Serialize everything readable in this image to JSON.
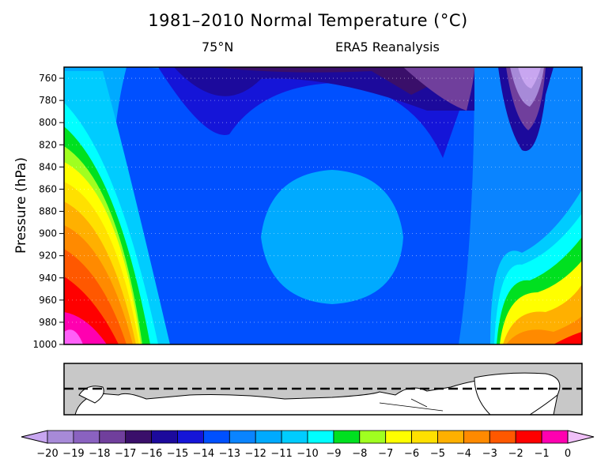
{
  "chart_data": {
    "type": "heatmap",
    "title": "1981–2010 Normal Temperature (°C)",
    "subtitle_latitude": "75°N",
    "subtitle_source": "ERA5 Reanalysis",
    "ylabel": "Pressure (hPa)",
    "y_axis": {
      "reversed": true,
      "range": [
        750,
        1000
      ],
      "ticks": [
        760,
        780,
        800,
        820,
        840,
        860,
        880,
        900,
        920,
        940,
        960,
        980,
        1000
      ],
      "grid": "dotted"
    },
    "x_axis": {
      "variable": "longitude",
      "tick_labels": []
    },
    "map_inset": {
      "description": "map of polar region with dashed line at 75°N",
      "line_style": "dashed"
    },
    "colorbar": {
      "orientation": "horizontal",
      "position": "bottom",
      "ticks": [
        -20,
        -19,
        -18,
        -17,
        -16,
        -15,
        -14,
        -13,
        -12,
        -11,
        -10,
        -9,
        -8,
        -7,
        -6,
        -5,
        -4,
        -3,
        -2,
        -1,
        0
      ],
      "colors": [
        "#c8a6f0",
        "#a78ad8",
        "#8a62c0",
        "#703f9c",
        "#3a0f6a",
        "#1c0a9c",
        "#1515d8",
        "#0050ff",
        "#0a84ff",
        "#00aaff",
        "#00ccff",
        "#00ffff",
        "#00e020",
        "#a0ff20",
        "#ffff00",
        "#ffe000",
        "#ffb000",
        "#ff8a00",
        "#ff5800",
        "#ff0000",
        "#ff00b0",
        "#ff60f8",
        "#f0c0f8"
      ]
    }
  }
}
